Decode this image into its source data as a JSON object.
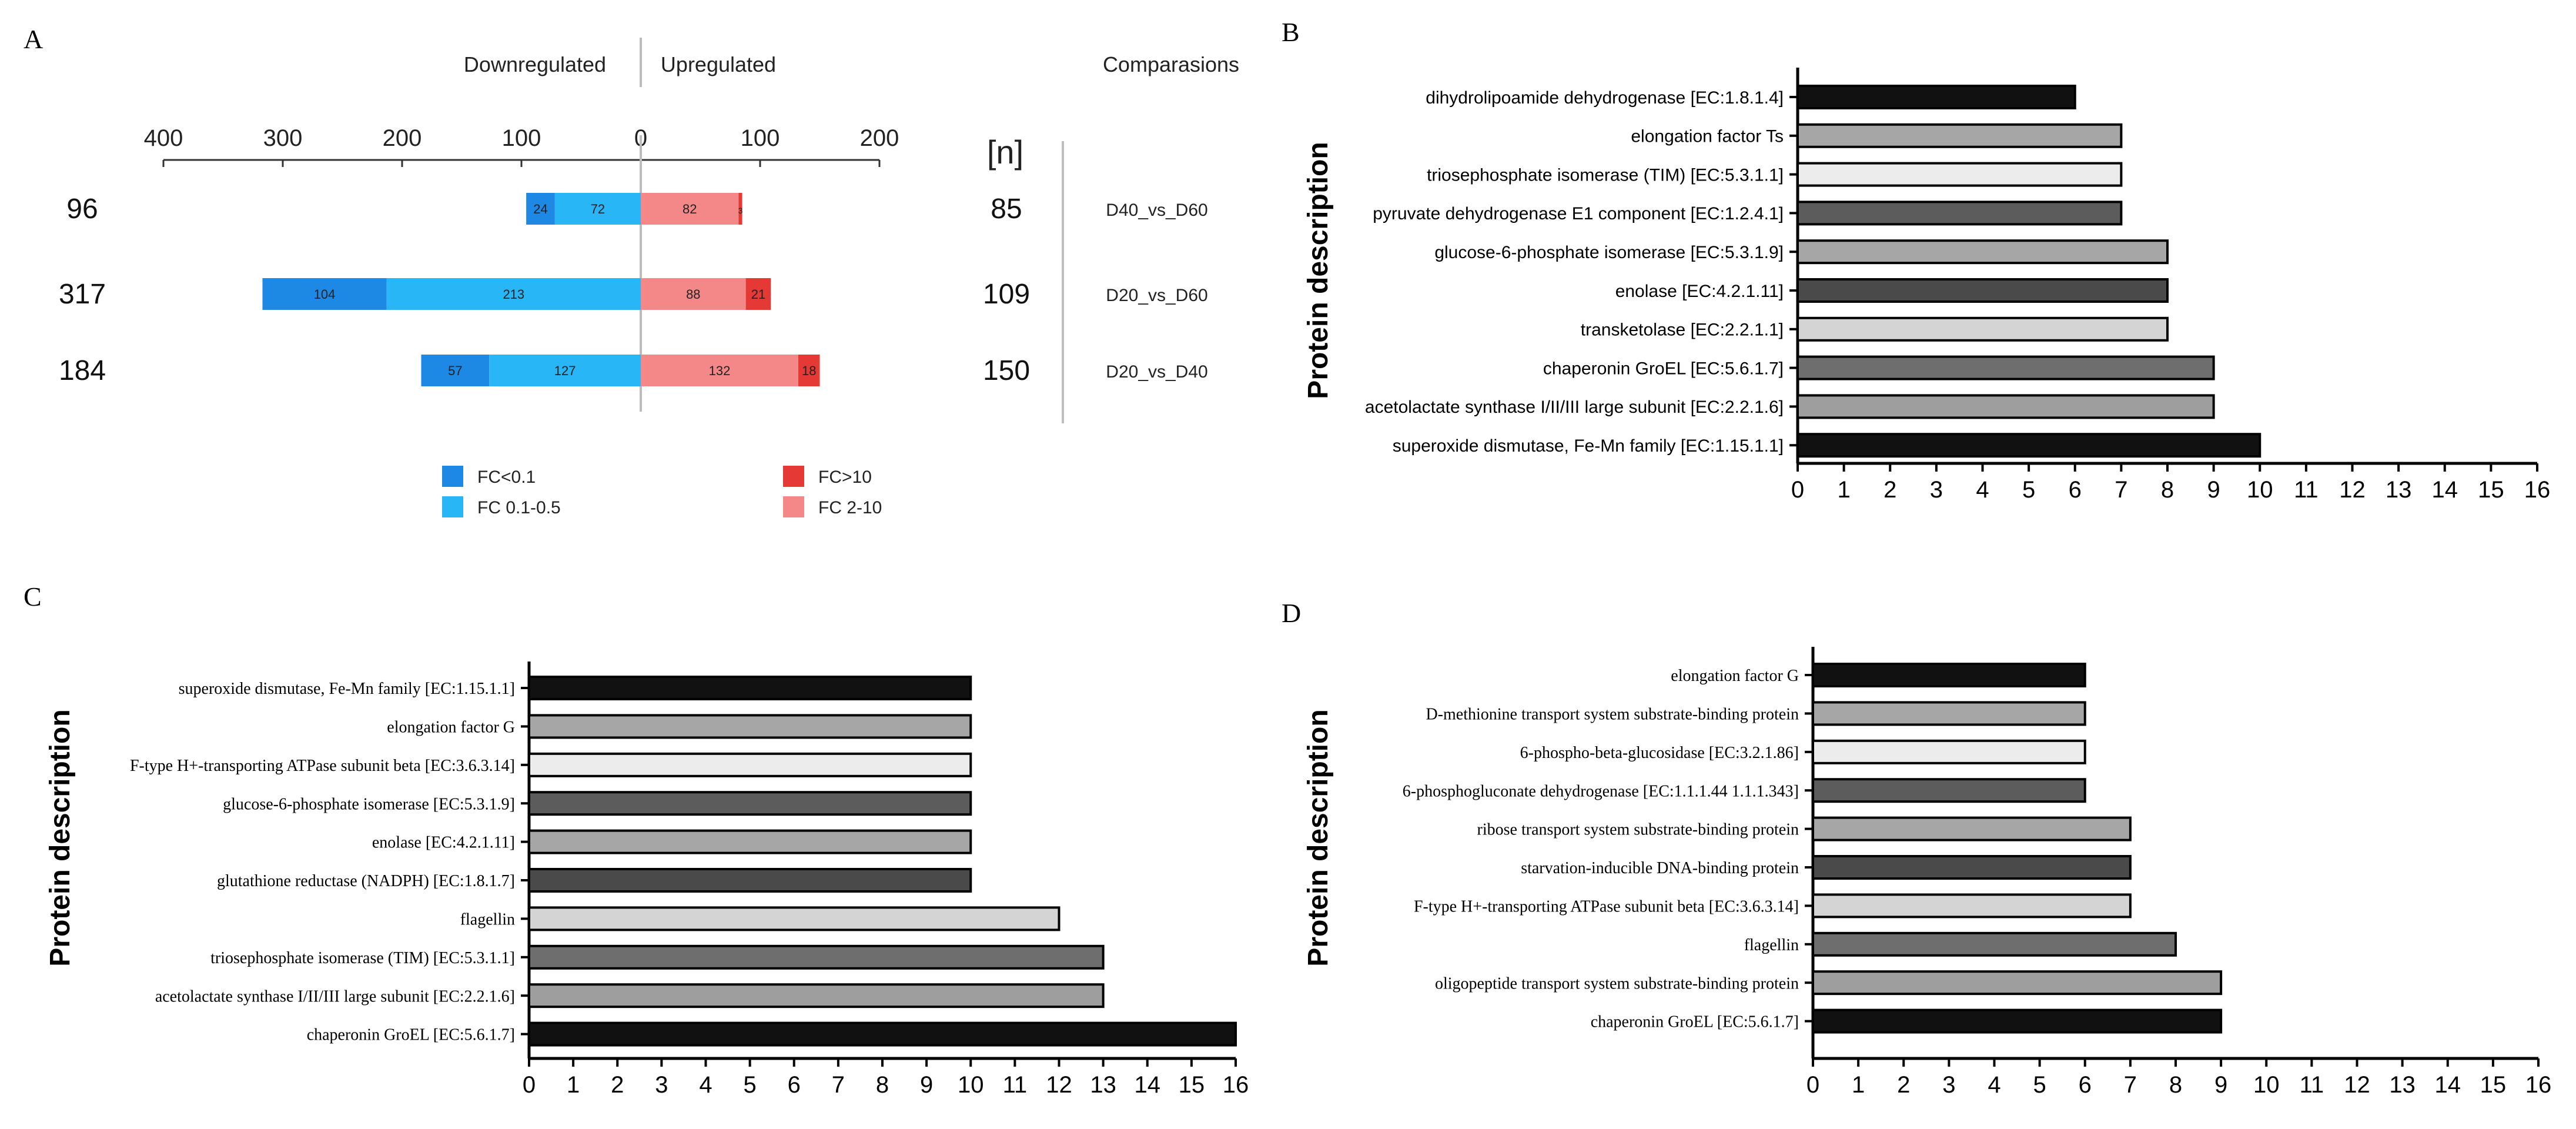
{
  "panel_letters": [
    "A",
    "B",
    "C",
    "D"
  ],
  "colors": {
    "fc_lt_0_1": "#1e88e5",
    "fc_0_1_0_5": "#29b6f6",
    "fc_gt_10": "#e53935",
    "fc_2_10": "#f48888",
    "axis": "#333333",
    "divider": "#bdbdbd"
  },
  "chart_data": [
    {
      "panel": "A",
      "type": "bar",
      "orientation": "horizontal-diverging-stacked",
      "header_down": "Downregulated",
      "header_up": "Upregulated",
      "header_comparisons": "Comparasions",
      "n_label": "[n]",
      "axis_ticks": [
        "400",
        "300",
        "200",
        "100",
        "0",
        "100",
        "200"
      ],
      "xlim": [
        -400,
        200
      ],
      "rows": [
        {
          "comparison": "D40_vs_D60",
          "down_total": "96",
          "up_total": "85",
          "down_lt_0_1": 24,
          "down_0_1_0_5": 72,
          "up_2_10": 82,
          "up_gt_10": 3
        },
        {
          "comparison": "D20_vs_D60",
          "down_total": "317",
          "up_total": "109",
          "down_lt_0_1": 104,
          "down_0_1_0_5": 213,
          "up_2_10": 88,
          "up_gt_10": 21
        },
        {
          "comparison": "D20_vs_D40",
          "down_total": "184",
          "up_total": "150",
          "down_lt_0_1": 57,
          "down_0_1_0_5": 127,
          "up_2_10": 132,
          "up_gt_10": 18
        }
      ],
      "legend": [
        {
          "key": "fc_lt_0_1",
          "label": "FC<0.1"
        },
        {
          "key": "fc_0_1_0_5",
          "label": "FC 0.1-0.5"
        },
        {
          "key": "fc_gt_10",
          "label": "FC>10"
        },
        {
          "key": "fc_2_10",
          "label": "FC 2-10"
        }
      ]
    },
    {
      "panel": "B",
      "type": "bar",
      "orientation": "horizontal",
      "ylabel": "Protein description",
      "xlim": [
        0,
        16
      ],
      "ticks": [
        "0",
        "1",
        "2",
        "3",
        "4",
        "5",
        "6",
        "7",
        "8",
        "9",
        "10",
        "11",
        "12",
        "13",
        "14",
        "15",
        "16"
      ],
      "bars": [
        {
          "label": "dihydrolipoamide dehydrogenase [EC:1.8.1.4]",
          "value": 6,
          "fill": "#111111"
        },
        {
          "label": "elongation factor Ts",
          "value": 7,
          "fill": "#a6a6a6"
        },
        {
          "label": "triosephosphate isomerase (TIM) [EC:5.3.1.1]",
          "value": 7,
          "fill": "#ececec"
        },
        {
          "label": "pyruvate dehydrogenase E1 component [EC:1.2.4.1]",
          "value": 7,
          "fill": "#5c5c5c"
        },
        {
          "label": "glucose-6-phosphate isomerase [EC:5.3.1.9]",
          "value": 8,
          "fill": "#a6a6a6"
        },
        {
          "label": "enolase [EC:4.2.1.11]",
          "value": 8,
          "fill": "#4a4a4a"
        },
        {
          "label": "transketolase [EC:2.2.1.1]",
          "value": 8,
          "fill": "#d4d4d4"
        },
        {
          "label": "chaperonin GroEL [EC:5.6.1.7]",
          "value": 9,
          "fill": "#6e6e6e"
        },
        {
          "label": "acetolactate synthase I/II/III large subunit [EC:2.2.1.6]",
          "value": 9,
          "fill": "#9e9e9e"
        },
        {
          "label": "superoxide dismutase, Fe-Mn family [EC:1.15.1.1]",
          "value": 10,
          "fill": "#111111"
        }
      ]
    },
    {
      "panel": "C",
      "type": "bar",
      "orientation": "horizontal",
      "ylabel": "Protein description",
      "xlim": [
        0,
        16
      ],
      "ticks": [
        "0",
        "1",
        "2",
        "3",
        "4",
        "5",
        "6",
        "7",
        "8",
        "9",
        "10",
        "11",
        "12",
        "13",
        "14",
        "15",
        "16"
      ],
      "bars": [
        {
          "label": "superoxide dismutase, Fe-Mn family [EC:1.15.1.1]",
          "value": 10,
          "fill": "#111111"
        },
        {
          "label": "elongation factor G",
          "value": 10,
          "fill": "#a6a6a6"
        },
        {
          "label": "F-type H+-transporting ATPase subunit beta [EC:3.6.3.14]",
          "value": 10,
          "fill": "#ececec"
        },
        {
          "label": "glucose-6-phosphate isomerase [EC:5.3.1.9]",
          "value": 10,
          "fill": "#5c5c5c"
        },
        {
          "label": "enolase [EC:4.2.1.11]",
          "value": 10,
          "fill": "#a6a6a6"
        },
        {
          "label": "glutathione reductase (NADPH) [EC:1.8.1.7]",
          "value": 10,
          "fill": "#4a4a4a"
        },
        {
          "label": "flagellin",
          "value": 12,
          "fill": "#d4d4d4"
        },
        {
          "label": "triosephosphate isomerase (TIM) [EC:5.3.1.1]",
          "value": 13,
          "fill": "#6e6e6e"
        },
        {
          "label": "acetolactate synthase I/II/III large subunit [EC:2.2.1.6]",
          "value": 13,
          "fill": "#9e9e9e"
        },
        {
          "label": "chaperonin GroEL [EC:5.6.1.7]",
          "value": 16,
          "fill": "#111111"
        }
      ]
    },
    {
      "panel": "D",
      "type": "bar",
      "orientation": "horizontal",
      "ylabel": "Protein description",
      "xlim": [
        0,
        16
      ],
      "ticks": [
        "0",
        "1",
        "2",
        "3",
        "4",
        "5",
        "6",
        "7",
        "8",
        "9",
        "10",
        "11",
        "12",
        "13",
        "14",
        "15",
        "16"
      ],
      "bars": [
        {
          "label": "elongation factor G",
          "value": 6,
          "fill": "#111111"
        },
        {
          "label": "D-methionine transport system substrate-binding protein",
          "value": 6,
          "fill": "#a6a6a6"
        },
        {
          "label": "6-phospho-beta-glucosidase [EC:3.2.1.86]",
          "value": 6,
          "fill": "#ececec"
        },
        {
          "label": "6-phosphogluconate dehydrogenase [EC:1.1.1.44 1.1.1.343]",
          "value": 6,
          "fill": "#5c5c5c"
        },
        {
          "label": "ribose transport system substrate-binding protein",
          "value": 7,
          "fill": "#a6a6a6"
        },
        {
          "label": "starvation-inducible DNA-binding protein",
          "value": 7,
          "fill": "#4a4a4a"
        },
        {
          "label": "F-type H+-transporting ATPase subunit beta [EC:3.6.3.14]",
          "value": 7,
          "fill": "#d4d4d4"
        },
        {
          "label": "flagellin",
          "value": 8,
          "fill": "#6e6e6e"
        },
        {
          "label": "oligopeptide transport system substrate-binding protein",
          "value": 9,
          "fill": "#9e9e9e"
        },
        {
          "label": "chaperonin GroEL [EC:5.6.1.7]",
          "value": 9,
          "fill": "#111111"
        }
      ]
    }
  ]
}
